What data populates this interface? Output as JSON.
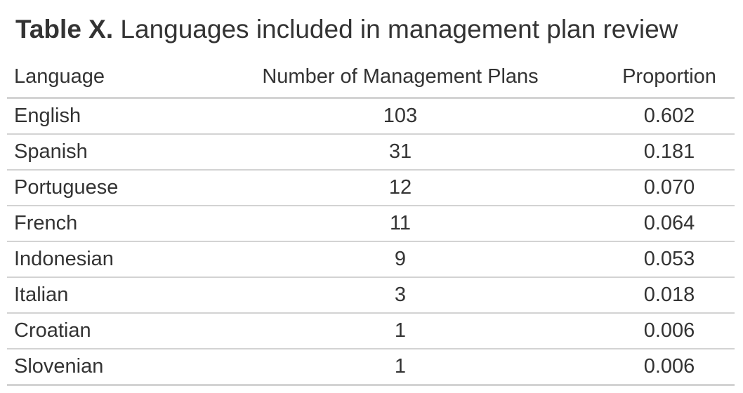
{
  "title": {
    "prefix": "Table X.",
    "text": " Languages included in management plan review"
  },
  "chart_data": {
    "type": "table",
    "columns": [
      "Language",
      "Number of Management Plans",
      "Proportion"
    ],
    "rows": [
      [
        "English",
        "103",
        "0.602"
      ],
      [
        "Spanish",
        "31",
        "0.181"
      ],
      [
        "Portuguese",
        "12",
        "0.070"
      ],
      [
        "French",
        "11",
        "0.064"
      ],
      [
        "Indonesian",
        "9",
        "0.053"
      ],
      [
        "Italian",
        "3",
        "0.018"
      ],
      [
        "Croatian",
        "1",
        "0.006"
      ],
      [
        "Slovenian",
        "1",
        "0.006"
      ]
    ]
  }
}
